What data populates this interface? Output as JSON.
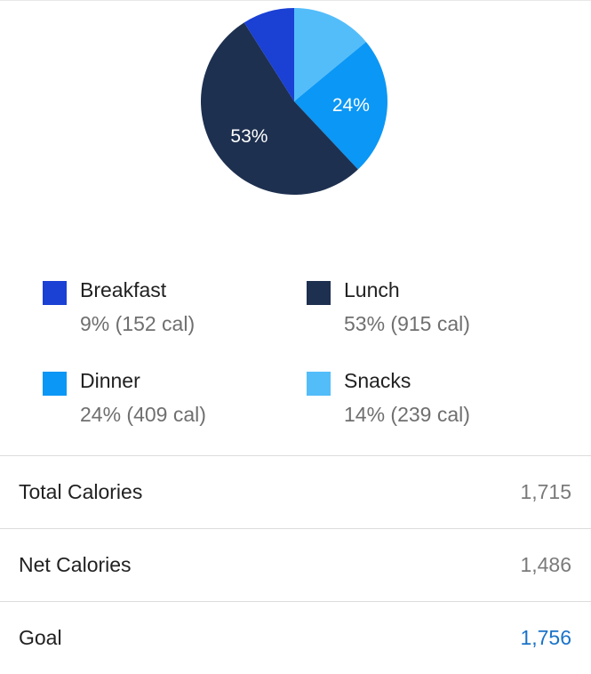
{
  "chart_data": {
    "type": "pie",
    "slices": [
      {
        "label": "Breakfast",
        "percent": 9,
        "calories": 152,
        "color": "#1a40d4",
        "slice_label": "",
        "detail": "9% (152 cal)"
      },
      {
        "label": "Lunch",
        "percent": 53,
        "calories": 915,
        "color": "#1e3050",
        "slice_label": "53%",
        "detail": "53% (915 cal)"
      },
      {
        "label": "Dinner",
        "percent": 24,
        "calories": 409,
        "color": "#0b97f5",
        "slice_label": "24%",
        "detail": "24% (409 cal)"
      },
      {
        "label": "Snacks",
        "percent": 14,
        "calories": 239,
        "color": "#53bdfa",
        "slice_label": "",
        "detail": "14% (239 cal)"
      }
    ],
    "start_angle_deg": 0,
    "direction": "clockwise",
    "legend_position": "bottom"
  },
  "stats": [
    {
      "label": "Total Calories",
      "value": "1,715",
      "color": "#7a7a7a"
    },
    {
      "label": "Net Calories",
      "value": "1,486",
      "color": "#7a7a7a"
    },
    {
      "label": "Goal",
      "value": "1,756",
      "color": "#1a73c8"
    }
  ]
}
